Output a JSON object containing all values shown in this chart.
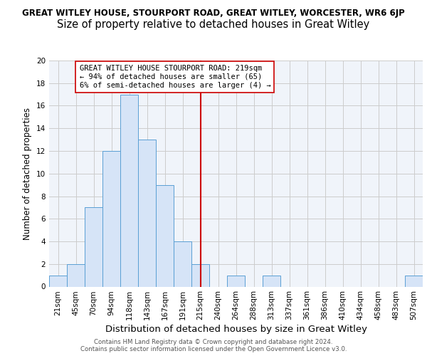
{
  "title": "GREAT WITLEY HOUSE, STOURPORT ROAD, GREAT WITLEY, WORCESTER, WR6 6JP",
  "subtitle": "Size of property relative to detached houses in Great Witley",
  "xlabel": "Distribution of detached houses by size in Great Witley",
  "ylabel": "Number of detached properties",
  "bar_labels": [
    "21sqm",
    "45sqm",
    "70sqm",
    "94sqm",
    "118sqm",
    "143sqm",
    "167sqm",
    "191sqm",
    "215sqm",
    "240sqm",
    "264sqm",
    "288sqm",
    "313sqm",
    "337sqm",
    "361sqm",
    "386sqm",
    "410sqm",
    "434sqm",
    "458sqm",
    "483sqm",
    "507sqm"
  ],
  "bar_values": [
    1,
    2,
    7,
    12,
    17,
    13,
    9,
    4,
    2,
    0,
    1,
    0,
    1,
    0,
    0,
    0,
    0,
    0,
    0,
    0,
    1
  ],
  "bar_color": "#d6e4f7",
  "bar_edge_color": "#5a9fd4",
  "vline_x": 8,
  "vline_color": "#cc0000",
  "annotation_text": "GREAT WITLEY HOUSE STOURPORT ROAD: 219sqm\n← 94% of detached houses are smaller (65)\n6% of semi-detached houses are larger (4) →",
  "annotation_box_color": "#ffffff",
  "annotation_box_edge": "#cc0000",
  "ylim": [
    0,
    20
  ],
  "yticks": [
    0,
    2,
    4,
    6,
    8,
    10,
    12,
    14,
    16,
    18,
    20
  ],
  "grid_color": "#cccccc",
  "background_color": "#f0f4fa",
  "footer_line1": "Contains HM Land Registry data © Crown copyright and database right 2024.",
  "footer_line2": "Contains public sector information licensed under the Open Government Licence v3.0.",
  "title_fontsize": 8.5,
  "subtitle_fontsize": 10.5,
  "xlabel_fontsize": 9.5,
  "ylabel_fontsize": 8.5,
  "tick_fontsize": 7.5,
  "annotation_fontsize": 7.5,
  "footer_fontsize": 6.2
}
